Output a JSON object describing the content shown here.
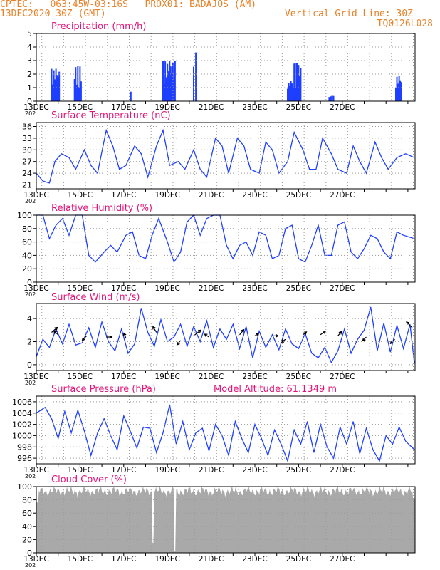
{
  "header": {
    "line1_left": "CPTEC:   063:45W-03:16S   PROX01: BADAJOS (AM)",
    "line2_left": "13DEC2020 30Z (GMT)",
    "line2_right": "Vertical Grid Line: 30Z",
    "line3_right": "TQ0126L028",
    "model_altitude": "Model Altitude: 61.1349 m",
    "year_stub": "202"
  },
  "colors": {
    "header": "#e8822a",
    "title": "#e0157a",
    "series": "#1f3fff",
    "cloud": "#a9a9a9",
    "grid": "#9a9a9a"
  },
  "x_ticks": [
    "13DEC",
    "15DEC",
    "17DEC",
    "19DEC",
    "21DEC",
    "23DEC",
    "25DEC",
    "27DEC"
  ],
  "chart_data": [
    {
      "type": "bar",
      "title": "Precipitation (mm/h)",
      "ylim": [
        0,
        5
      ],
      "yticks": [
        "0",
        "1",
        "2",
        "3",
        "4",
        "5"
      ],
      "x_unit": "days since 13DEC",
      "bursts": [
        {
          "start": 0.7,
          "end": 1.05,
          "peak": 2.4
        },
        {
          "start": 1.75,
          "end": 2.05,
          "peak": 2.6
        },
        {
          "start": 4.3,
          "end": 4.35,
          "peak": 0.7
        },
        {
          "start": 5.8,
          "end": 6.35,
          "peak": 3.0
        },
        {
          "start": 7.2,
          "end": 7.3,
          "peak": 3.6
        },
        {
          "start": 11.5,
          "end": 11.75,
          "peak": 1.5
        },
        {
          "start": 11.8,
          "end": 12.1,
          "peak": 2.8
        },
        {
          "start": 13.4,
          "end": 13.6,
          "peak": 0.4
        },
        {
          "start": 16.45,
          "end": 16.7,
          "peak": 1.9
        }
      ]
    },
    {
      "type": "line",
      "title": "Surface Temperature (nC)",
      "ylim": [
        20,
        37
      ],
      "yticks": [
        "21",
        "24",
        "27",
        "30",
        "33",
        "36"
      ],
      "days": [
        0,
        0.3,
        0.6,
        0.85,
        1.15,
        1.5,
        1.8,
        2.2,
        2.5,
        2.8,
        3.2,
        3.5,
        3.8,
        4.1,
        4.5,
        4.8,
        5.1,
        5.5,
        5.8,
        6.1,
        6.5,
        6.8,
        7.2,
        7.5,
        7.8,
        8.2,
        8.5,
        8.8,
        9.2,
        9.5,
        9.8,
        10.2,
        10.5,
        10.8,
        11.1,
        11.5,
        11.8,
        12.2,
        12.5,
        12.8,
        13.1,
        13.5,
        13.8,
        14.2,
        14.5,
        14.8,
        15.1,
        15.5,
        15.8,
        16.1,
        16.5,
        16.9,
        17.3
      ],
      "values": [
        24,
        22,
        21.5,
        27,
        29,
        28,
        25,
        30,
        26,
        24,
        35,
        31,
        25,
        26,
        31,
        29,
        23,
        31,
        35,
        26,
        27,
        25,
        30,
        25,
        23,
        33,
        31,
        24,
        33,
        31,
        25,
        24,
        32,
        30,
        24,
        27,
        34.5,
        30,
        25,
        25,
        33,
        29,
        25,
        24,
        31,
        27,
        24,
        32,
        28,
        25,
        28,
        29,
        28
      ]
    },
    {
      "type": "line",
      "title": "Relative Humidity (%)",
      "ylim": [
        0,
        100
      ],
      "yticks": [
        "0",
        "20",
        "40",
        "60",
        "80",
        "100"
      ],
      "days": [
        0,
        0.3,
        0.6,
        0.9,
        1.2,
        1.5,
        1.8,
        2.1,
        2.4,
        2.7,
        3.1,
        3.4,
        3.7,
        4.1,
        4.4,
        4.7,
        5.0,
        5.3,
        5.6,
        6.0,
        6.3,
        6.6,
        6.9,
        7.2,
        7.5,
        7.8,
        8.1,
        8.4,
        8.7,
        9.0,
        9.3,
        9.6,
        9.9,
        10.2,
        10.5,
        10.8,
        11.1,
        11.4,
        11.7,
        12.0,
        12.3,
        12.6,
        12.9,
        13.2,
        13.5,
        13.8,
        14.1,
        14.4,
        14.7,
        15.0,
        15.3,
        15.6,
        15.9,
        16.2,
        16.5,
        16.8,
        17.3
      ],
      "values": [
        100,
        100,
        65,
        85,
        95,
        70,
        100,
        100,
        40,
        30,
        45,
        55,
        45,
        70,
        75,
        40,
        35,
        70,
        95,
        60,
        30,
        45,
        90,
        100,
        70,
        95,
        100,
        100,
        55,
        35,
        55,
        60,
        40,
        75,
        70,
        35,
        40,
        80,
        85,
        35,
        30,
        55,
        85,
        40,
        40,
        85,
        90,
        45,
        35,
        50,
        70,
        65,
        45,
        35,
        75,
        70,
        65
      ]
    },
    {
      "type": "line",
      "title": "Surface Wind (m/s)",
      "ylim": [
        -0.5,
        5.3
      ],
      "yticks": [
        "0",
        "2",
        "4"
      ],
      "days": [
        0,
        0.3,
        0.6,
        0.9,
        1.2,
        1.5,
        1.8,
        2.1,
        2.4,
        2.7,
        3.0,
        3.3,
        3.6,
        3.9,
        4.2,
        4.5,
        4.8,
        5.1,
        5.4,
        5.7,
        6.0,
        6.3,
        6.6,
        6.9,
        7.2,
        7.5,
        7.8,
        8.1,
        8.4,
        8.7,
        9.0,
        9.3,
        9.6,
        9.9,
        10.2,
        10.5,
        10.8,
        11.1,
        11.4,
        11.7,
        12.0,
        12.3,
        12.6,
        12.9,
        13.2,
        13.5,
        13.8,
        14.1,
        14.4,
        14.7,
        15.0,
        15.3,
        15.6,
        15.9,
        16.2,
        16.5,
        16.8,
        17.1,
        17.3
      ],
      "values": [
        0.7,
        2.2,
        1.5,
        3.1,
        1.8,
        3.5,
        1.7,
        1.9,
        3.2,
        1.5,
        3.7,
        2.0,
        1.2,
        3.1,
        1.0,
        1.8,
        4.9,
        2.8,
        1.6,
        3.9,
        2.0,
        2.4,
        3.5,
        1.6,
        3.3,
        2.0,
        3.8,
        1.5,
        3.1,
        2.2,
        3.5,
        1.4,
        3.3,
        0.6,
        2.9,
        1.5,
        2.6,
        1.3,
        3.1,
        1.8,
        1.4,
        2.7,
        1.0,
        0.6,
        1.5,
        0.2,
        1.2,
        3.1,
        1.0,
        2.2,
        3.0,
        5.0,
        1.2,
        3.6,
        1.1,
        3.4,
        1.4,
        3.5,
        0.1
      ],
      "vectors": [
        {
          "day": 0.7,
          "speed": 2.8,
          "dx": 8,
          "dy": -7
        },
        {
          "day": 1.0,
          "speed": 2.6,
          "dx": -6,
          "dy": -5
        },
        {
          "day": 2.3,
          "speed": 2.5,
          "dx": -6,
          "dy": 6
        },
        {
          "day": 3.2,
          "speed": 2.4,
          "dx": 8,
          "dy": 0
        },
        {
          "day": 4.1,
          "speed": 2.3,
          "dx": -3,
          "dy": -7
        },
        {
          "day": 5.5,
          "speed": 2.8,
          "dx": -5,
          "dy": -8
        },
        {
          "day": 6.6,
          "speed": 2.1,
          "dx": -5,
          "dy": 6
        },
        {
          "day": 7.2,
          "speed": 2.5,
          "dx": 10,
          "dy": -8
        },
        {
          "day": 7.9,
          "speed": 2.4,
          "dx": -6,
          "dy": -4
        },
        {
          "day": 9.3,
          "speed": 2.6,
          "dx": 6,
          "dy": -7
        },
        {
          "day": 10.0,
          "speed": 2.5,
          "dx": 5,
          "dy": -3
        },
        {
          "day": 10.8,
          "speed": 2.5,
          "dx": 8,
          "dy": 0
        },
        {
          "day": 11.4,
          "speed": 2.2,
          "dx": -6,
          "dy": 4
        },
        {
          "day": 12.2,
          "speed": 2.6,
          "dx": 5,
          "dy": -4
        },
        {
          "day": 13.0,
          "speed": 2.6,
          "dx": 7,
          "dy": -5
        },
        {
          "day": 13.8,
          "speed": 2.5,
          "dx": 5,
          "dy": -6
        },
        {
          "day": 15.1,
          "speed": 2.4,
          "dx": -5,
          "dy": 5
        },
        {
          "day": 16.4,
          "speed": 2.2,
          "dx": -6,
          "dy": 6
        },
        {
          "day": 17.2,
          "speed": 3.2,
          "dx": -8,
          "dy": -8
        }
      ]
    },
    {
      "type": "line",
      "title": "Surface Pressure (hPa)",
      "ylim": [
        995,
        1007
      ],
      "yticks": [
        "996",
        "998",
        "1000",
        "1002",
        "1004",
        "1006"
      ],
      "days": [
        0,
        0.4,
        0.7,
        1.0,
        1.3,
        1.6,
        1.9,
        2.2,
        2.5,
        2.8,
        3.1,
        3.4,
        3.7,
        4.0,
        4.3,
        4.6,
        4.9,
        5.2,
        5.5,
        5.8,
        6.1,
        6.4,
        6.7,
        7.0,
        7.3,
        7.6,
        7.9,
        8.2,
        8.5,
        8.8,
        9.1,
        9.4,
        9.7,
        10.0,
        10.3,
        10.6,
        10.9,
        11.2,
        11.5,
        11.8,
        12.1,
        12.4,
        12.7,
        13.0,
        13.3,
        13.6,
        13.9,
        14.2,
        14.5,
        14.8,
        15.1,
        15.4,
        15.7,
        16.0,
        16.3,
        16.6,
        16.9,
        17.3
      ],
      "values": [
        1004,
        1005,
        1003,
        999.5,
        1004.3,
        1000.5,
        1004.5,
        1000.8,
        996.5,
        1000.5,
        1003,
        1000,
        997.5,
        1003.5,
        1000.8,
        997.8,
        1001.5,
        1001.3,
        997,
        1000.5,
        1005.5,
        998.5,
        1002.5,
        997.5,
        1000.5,
        1001.3,
        997.3,
        1002,
        1000,
        996.5,
        1002.5,
        999.5,
        997,
        1002,
        999.5,
        996.5,
        1001,
        998.5,
        995.5,
        1001,
        998.5,
        1002.5,
        997,
        1002,
        998,
        996,
        1001.5,
        998.5,
        1002.5,
        996.8,
        1001.3,
        997.5,
        995.5,
        1000,
        998.5,
        1001.5,
        999,
        997.5
      ]
    },
    {
      "type": "area",
      "title": "Cloud Cover (%)",
      "ylim": [
        0,
        100
      ],
      "yticks": [
        "0",
        "20",
        "40",
        "60",
        "80",
        "100"
      ],
      "dips": [
        {
          "day": 5.35,
          "value": 15
        },
        {
          "day": 6.35,
          "value": 2
        }
      ]
    }
  ]
}
